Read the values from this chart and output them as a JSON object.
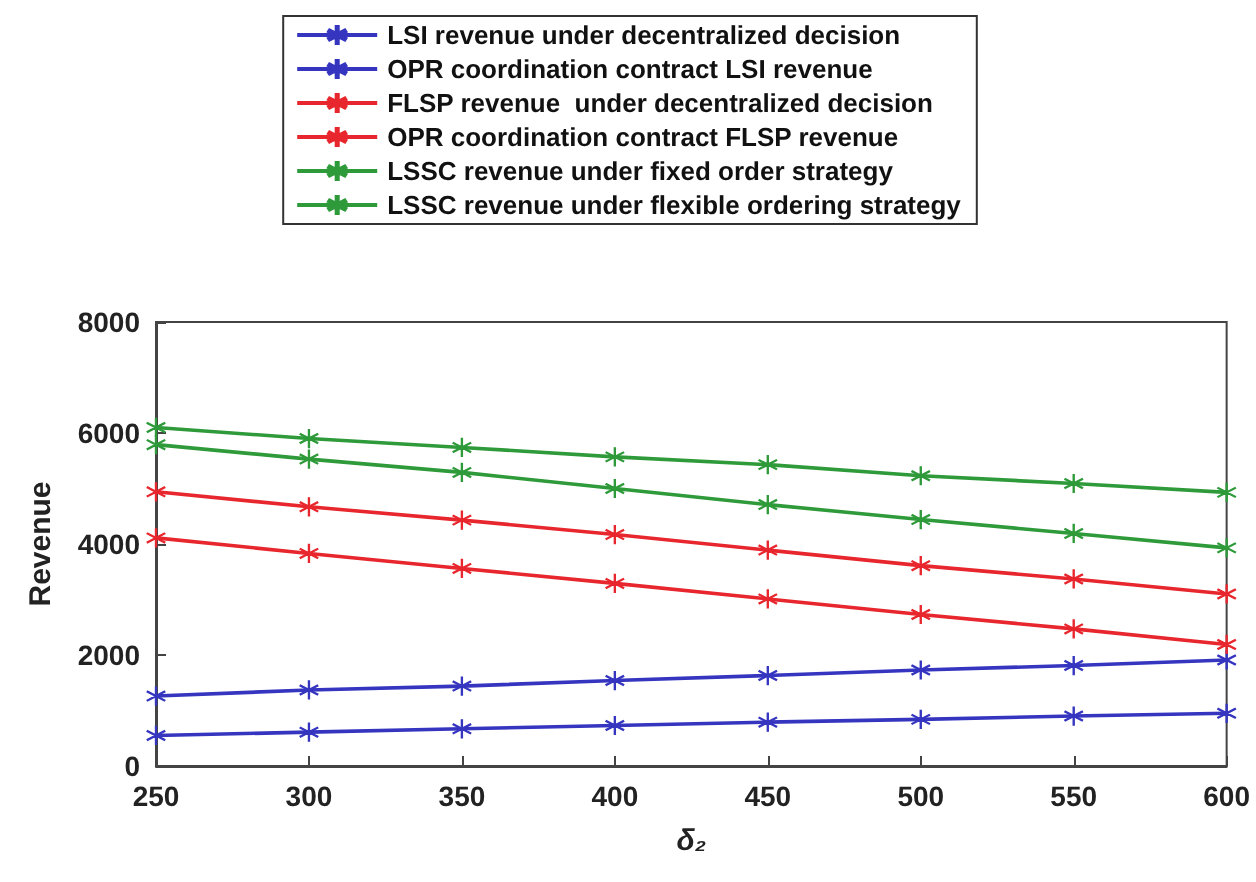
{
  "chart_data": {
    "type": "line",
    "xlabel": "δ₂",
    "ylabel": "Revenue",
    "x": [
      250,
      300,
      350,
      400,
      450,
      500,
      550,
      600
    ],
    "series": [
      {
        "name": "LSI revenue under decentralized decision",
        "color": "#3535c0",
        "values": [
          550,
          610,
          670,
          730,
          790,
          840,
          900,
          950
        ]
      },
      {
        "name": "OPR coordination contract LSI revenue",
        "color": "#3535c0",
        "values": [
          1260,
          1370,
          1440,
          1540,
          1630,
          1730,
          1810,
          1910
        ]
      },
      {
        "name": "FLSP revenue  under decentralized decision",
        "color": "#e8262d",
        "values": [
          4110,
          3830,
          3560,
          3290,
          3010,
          2730,
          2470,
          2190
        ]
      },
      {
        "name": "OPR coordination contract FLSP revenue",
        "color": "#e8262d",
        "values": [
          4940,
          4670,
          4430,
          4170,
          3890,
          3610,
          3370,
          3100
        ]
      },
      {
        "name": "LSSC revenue under fixed order strategy",
        "color": "#2e9a3a",
        "values": [
          5790,
          5530,
          5290,
          5000,
          4710,
          4440,
          4190,
          3930
        ]
      },
      {
        "name": "LSSC revenue under flexible ordering strategy",
        "color": "#2e9a3a",
        "values": [
          6100,
          5900,
          5740,
          5570,
          5430,
          5230,
          5090,
          4930
        ]
      }
    ],
    "xlim": [
      250,
      600
    ],
    "xticks": [
      250,
      300,
      350,
      400,
      450,
      500,
      550,
      600
    ],
    "ylim": [
      0,
      8000
    ],
    "yticks": [
      0,
      2000,
      4000,
      6000,
      8000
    ],
    "grid": false,
    "legend": "top",
    "marker": "cross",
    "line_style": "solid"
  }
}
